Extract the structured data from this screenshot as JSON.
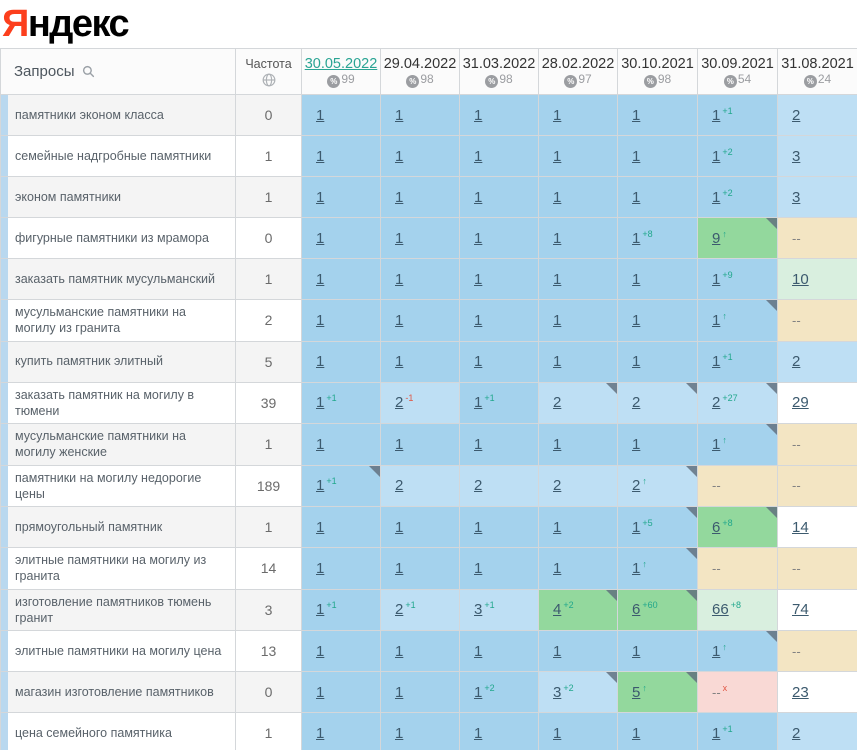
{
  "logo": {
    "first_letter": "Я",
    "rest": "ндекс"
  },
  "colors": {
    "logo-red": "#fc3f1d",
    "accent": "#29a493",
    "pos1": "#a4d2ed",
    "pos2": "#bedff4",
    "green": "#93d89d",
    "palegreen": "#d9efdf",
    "tan": "#f3e5c3",
    "pink": "#f9d9d5",
    "stripe": "#b9d8ef",
    "grid": "#d4d7da",
    "sup-up": "#21a78c",
    "sup-down": "#e05643"
  },
  "icons": {
    "queries_header": "search-icon",
    "frequency_header": "globe-icon",
    "coverage_badge": "percent-icon",
    "cell_marker": "corner-marker"
  },
  "table": {
    "queries_header": "Запросы",
    "frequency_header": "Частота",
    "date_columns": [
      {
        "date": "30.05.2022",
        "coverage": "99",
        "active": true
      },
      {
        "date": "29.04.2022",
        "coverage": "98",
        "active": false
      },
      {
        "date": "31.03.2022",
        "coverage": "98",
        "active": false
      },
      {
        "date": "28.02.2022",
        "coverage": "97",
        "active": false
      },
      {
        "date": "30.10.2021",
        "coverage": "98",
        "active": false
      },
      {
        "date": "30.09.2021",
        "coverage": "54",
        "active": false
      },
      {
        "date": "31.08.2021",
        "coverage": "24",
        "active": false
      }
    ],
    "rows": [
      {
        "query": "памятники эконом класса",
        "frequency": "0",
        "cells": [
          {
            "v": "1",
            "bg": "pos1"
          },
          {
            "v": "1",
            "bg": "pos1"
          },
          {
            "v": "1",
            "bg": "pos1"
          },
          {
            "v": "1",
            "bg": "pos1"
          },
          {
            "v": "1",
            "bg": "pos1"
          },
          {
            "v": "1",
            "bg": "pos1",
            "s": "+1",
            "st": "up"
          },
          {
            "v": "2",
            "bg": "pos2"
          }
        ]
      },
      {
        "query": "семейные надгробные памятники",
        "frequency": "1",
        "cells": [
          {
            "v": "1",
            "bg": "pos1"
          },
          {
            "v": "1",
            "bg": "pos1"
          },
          {
            "v": "1",
            "bg": "pos1"
          },
          {
            "v": "1",
            "bg": "pos1"
          },
          {
            "v": "1",
            "bg": "pos1"
          },
          {
            "v": "1",
            "bg": "pos1",
            "s": "+2",
            "st": "up"
          },
          {
            "v": "3",
            "bg": "pos2"
          }
        ]
      },
      {
        "query": "эконом памятники",
        "frequency": "1",
        "cells": [
          {
            "v": "1",
            "bg": "pos1"
          },
          {
            "v": "1",
            "bg": "pos1"
          },
          {
            "v": "1",
            "bg": "pos1"
          },
          {
            "v": "1",
            "bg": "pos1"
          },
          {
            "v": "1",
            "bg": "pos1"
          },
          {
            "v": "1",
            "bg": "pos1",
            "s": "+2",
            "st": "up"
          },
          {
            "v": "3",
            "bg": "pos2"
          }
        ]
      },
      {
        "query": "фигурные памятники из мрамора",
        "frequency": "0",
        "cells": [
          {
            "v": "1",
            "bg": "pos1"
          },
          {
            "v": "1",
            "bg": "pos1"
          },
          {
            "v": "1",
            "bg": "pos1"
          },
          {
            "v": "1",
            "bg": "pos1"
          },
          {
            "v": "1",
            "bg": "pos1",
            "s": "+8",
            "st": "up"
          },
          {
            "v": "9",
            "bg": "green",
            "s": "↑",
            "st": "up",
            "c": true
          },
          {
            "v": "--",
            "bg": "tan"
          }
        ]
      },
      {
        "query": "заказать памятник мусульманский",
        "frequency": "1",
        "cells": [
          {
            "v": "1",
            "bg": "pos1"
          },
          {
            "v": "1",
            "bg": "pos1"
          },
          {
            "v": "1",
            "bg": "pos1"
          },
          {
            "v": "1",
            "bg": "pos1"
          },
          {
            "v": "1",
            "bg": "pos1"
          },
          {
            "v": "1",
            "bg": "pos1",
            "s": "+9",
            "st": "up"
          },
          {
            "v": "10",
            "bg": "palegreen"
          }
        ]
      },
      {
        "query": "мусульманские памятники на могилу из гранита",
        "frequency": "2",
        "cells": [
          {
            "v": "1",
            "bg": "pos1"
          },
          {
            "v": "1",
            "bg": "pos1"
          },
          {
            "v": "1",
            "bg": "pos1"
          },
          {
            "v": "1",
            "bg": "pos1"
          },
          {
            "v": "1",
            "bg": "pos1"
          },
          {
            "v": "1",
            "bg": "pos1",
            "s": "↑",
            "st": "up",
            "c": true
          },
          {
            "v": "--",
            "bg": "tan"
          }
        ]
      },
      {
        "query": "купить памятник элитный",
        "frequency": "5",
        "cells": [
          {
            "v": "1",
            "bg": "pos1"
          },
          {
            "v": "1",
            "bg": "pos1"
          },
          {
            "v": "1",
            "bg": "pos1"
          },
          {
            "v": "1",
            "bg": "pos1"
          },
          {
            "v": "1",
            "bg": "pos1"
          },
          {
            "v": "1",
            "bg": "pos1",
            "s": "+1",
            "st": "up"
          },
          {
            "v": "2",
            "bg": "pos2"
          }
        ]
      },
      {
        "query": "заказать памятник на могилу в тюмени",
        "frequency": "39",
        "cells": [
          {
            "v": "1",
            "bg": "pos1",
            "s": "+1",
            "st": "up"
          },
          {
            "v": "2",
            "bg": "pos2",
            "s": "-1",
            "st": "down"
          },
          {
            "v": "1",
            "bg": "pos1",
            "s": "+1",
            "st": "up"
          },
          {
            "v": "2",
            "bg": "pos2",
            "c": true
          },
          {
            "v": "2",
            "bg": "pos2",
            "c": true
          },
          {
            "v": "2",
            "bg": "pos2",
            "s": "+27",
            "st": "up",
            "c": true
          },
          {
            "v": "29",
            "bg": "white"
          }
        ]
      },
      {
        "query": "мусульманские памятники на могилу женские",
        "frequency": "1",
        "cells": [
          {
            "v": "1",
            "bg": "pos1"
          },
          {
            "v": "1",
            "bg": "pos1"
          },
          {
            "v": "1",
            "bg": "pos1"
          },
          {
            "v": "1",
            "bg": "pos1"
          },
          {
            "v": "1",
            "bg": "pos1"
          },
          {
            "v": "1",
            "bg": "pos1",
            "s": "↑",
            "st": "up",
            "c": true
          },
          {
            "v": "--",
            "bg": "tan"
          }
        ]
      },
      {
        "query": "памятники на могилу недорогие цены",
        "frequency": "189",
        "cells": [
          {
            "v": "1",
            "bg": "pos1",
            "s": "+1",
            "st": "up",
            "c": true
          },
          {
            "v": "2",
            "bg": "pos2"
          },
          {
            "v": "2",
            "bg": "pos2"
          },
          {
            "v": "2",
            "bg": "pos2"
          },
          {
            "v": "2",
            "bg": "pos2",
            "s": "↑",
            "st": "up",
            "c": true
          },
          {
            "v": "--",
            "bg": "tan"
          },
          {
            "v": "--",
            "bg": "tan"
          }
        ]
      },
      {
        "query": "прямоугольный памятник",
        "frequency": "1",
        "cells": [
          {
            "v": "1",
            "bg": "pos1"
          },
          {
            "v": "1",
            "bg": "pos1"
          },
          {
            "v": "1",
            "bg": "pos1"
          },
          {
            "v": "1",
            "bg": "pos1"
          },
          {
            "v": "1",
            "bg": "pos1",
            "s": "+5",
            "st": "up",
            "c": true
          },
          {
            "v": "6",
            "bg": "green",
            "s": "+8",
            "st": "up",
            "c": true
          },
          {
            "v": "14",
            "bg": "white"
          }
        ]
      },
      {
        "query": "элитные памятники на могилу из гранита",
        "frequency": "14",
        "cells": [
          {
            "v": "1",
            "bg": "pos1"
          },
          {
            "v": "1",
            "bg": "pos1"
          },
          {
            "v": "1",
            "bg": "pos1"
          },
          {
            "v": "1",
            "bg": "pos1"
          },
          {
            "v": "1",
            "bg": "pos1",
            "s": "↑",
            "st": "up",
            "c": true
          },
          {
            "v": "--",
            "bg": "tan"
          },
          {
            "v": "--",
            "bg": "tan"
          }
        ]
      },
      {
        "query": "изготовление памятников тюмень гранит",
        "frequency": "3",
        "cells": [
          {
            "v": "1",
            "bg": "pos1",
            "s": "+1",
            "st": "up"
          },
          {
            "v": "2",
            "bg": "pos2",
            "s": "+1",
            "st": "up"
          },
          {
            "v": "3",
            "bg": "pos2",
            "s": "+1",
            "st": "up"
          },
          {
            "v": "4",
            "bg": "green",
            "s": "+2",
            "st": "up",
            "c": true
          },
          {
            "v": "6",
            "bg": "green",
            "s": "+60",
            "st": "up",
            "c": true
          },
          {
            "v": "66",
            "bg": "palegreen",
            "s": "+8",
            "st": "up"
          },
          {
            "v": "74",
            "bg": "white"
          }
        ]
      },
      {
        "query": "элитные памятники на могилу цена",
        "frequency": "13",
        "cells": [
          {
            "v": "1",
            "bg": "pos1"
          },
          {
            "v": "1",
            "bg": "pos1"
          },
          {
            "v": "1",
            "bg": "pos1"
          },
          {
            "v": "1",
            "bg": "pos1"
          },
          {
            "v": "1",
            "bg": "pos1"
          },
          {
            "v": "1",
            "bg": "pos1",
            "s": "↑",
            "st": "up",
            "c": true
          },
          {
            "v": "--",
            "bg": "tan"
          }
        ]
      },
      {
        "query": "магазин изготовление памятников",
        "frequency": "0",
        "cells": [
          {
            "v": "1",
            "bg": "pos1"
          },
          {
            "v": "1",
            "bg": "pos1"
          },
          {
            "v": "1",
            "bg": "pos1",
            "s": "+2",
            "st": "up"
          },
          {
            "v": "3",
            "bg": "pos2",
            "s": "+2",
            "st": "up",
            "c": true
          },
          {
            "v": "5",
            "bg": "green",
            "s": "↑",
            "st": "up",
            "c": true
          },
          {
            "v": "--",
            "bg": "pink",
            "s": "x",
            "st": "down"
          },
          {
            "v": "23",
            "bg": "white"
          }
        ]
      },
      {
        "query": "цена семейного памятника",
        "frequency": "1",
        "cells": [
          {
            "v": "1",
            "bg": "pos1"
          },
          {
            "v": "1",
            "bg": "pos1"
          },
          {
            "v": "1",
            "bg": "pos1"
          },
          {
            "v": "1",
            "bg": "pos1"
          },
          {
            "v": "1",
            "bg": "pos1"
          },
          {
            "v": "1",
            "bg": "pos1",
            "s": "+1",
            "st": "up"
          },
          {
            "v": "2",
            "bg": "pos2"
          }
        ]
      }
    ]
  }
}
